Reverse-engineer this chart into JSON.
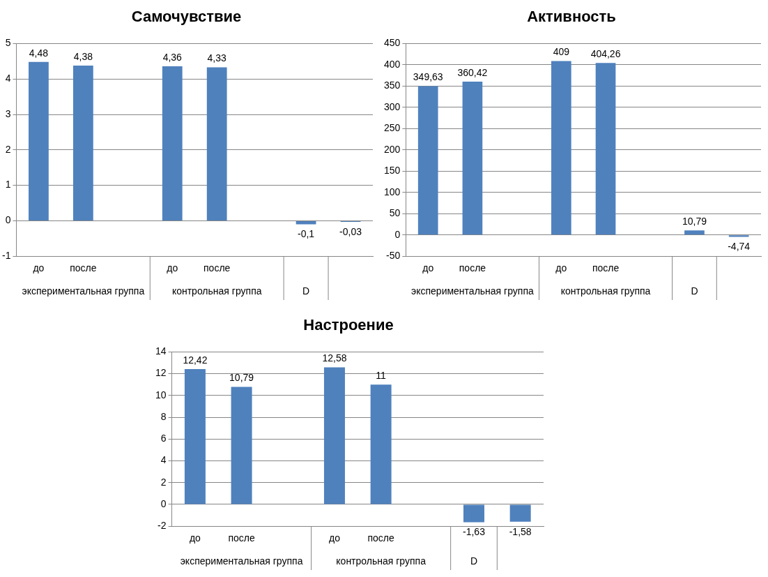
{
  "chart_data": [
    {
      "type": "bar",
      "title": "Самочувствие",
      "categories": [
        "до",
        "после",
        null,
        "до",
        "после",
        null,
        null,
        null
      ],
      "values": [
        4.48,
        4.38,
        null,
        4.36,
        4.33,
        null,
        -0.1,
        -0.03
      ],
      "value_labels": [
        "4,48",
        "4,38",
        null,
        "4,36",
        "4,33",
        null,
        "-0,1",
        "-0,03"
      ],
      "color": "#4f81bd",
      "ylim": [
        -1,
        5
      ],
      "yticks": [
        -1,
        0,
        1,
        2,
        3,
        4,
        5
      ],
      "grid": "y",
      "legend": false,
      "annotations": [
        "экспериментальная группа",
        "контрольная группа",
        "D"
      ]
    },
    {
      "type": "bar",
      "title": "Активность",
      "categories": [
        "до",
        "после",
        null,
        "до",
        "после",
        null,
        null,
        null
      ],
      "values": [
        349.63,
        360.42,
        null,
        409,
        404.26,
        null,
        10.79,
        -4.74
      ],
      "value_labels": [
        "349,63",
        "360,42",
        null,
        "409",
        "404,26",
        null,
        "10,79",
        "-4,74"
      ],
      "color": "#4f81bd",
      "ylim": [
        -50,
        450
      ],
      "yticks": [
        -50,
        0,
        50,
        100,
        150,
        200,
        250,
        300,
        350,
        400,
        450
      ],
      "grid": "y",
      "legend": false,
      "annotations": [
        "экспериментальная группа",
        "контрольная группа",
        "D"
      ]
    },
    {
      "type": "bar",
      "title": "Настроение",
      "categories": [
        "до",
        "после",
        null,
        "до",
        "после",
        null,
        null,
        null
      ],
      "values": [
        12.42,
        10.79,
        null,
        12.58,
        11,
        null,
        -1.63,
        -1.58
      ],
      "value_labels": [
        "12,42",
        "10,79",
        null,
        "12,58",
        "11",
        null,
        "-1,63",
        "-1,58"
      ],
      "color": "#4f81bd",
      "ylim": [
        -2,
        14
      ],
      "yticks": [
        -2,
        0,
        2,
        4,
        6,
        8,
        10,
        12,
        14
      ],
      "grid": "y",
      "legend": false,
      "annotations": [
        "экспериментальная группа",
        "контрольная группа",
        "D"
      ]
    }
  ]
}
